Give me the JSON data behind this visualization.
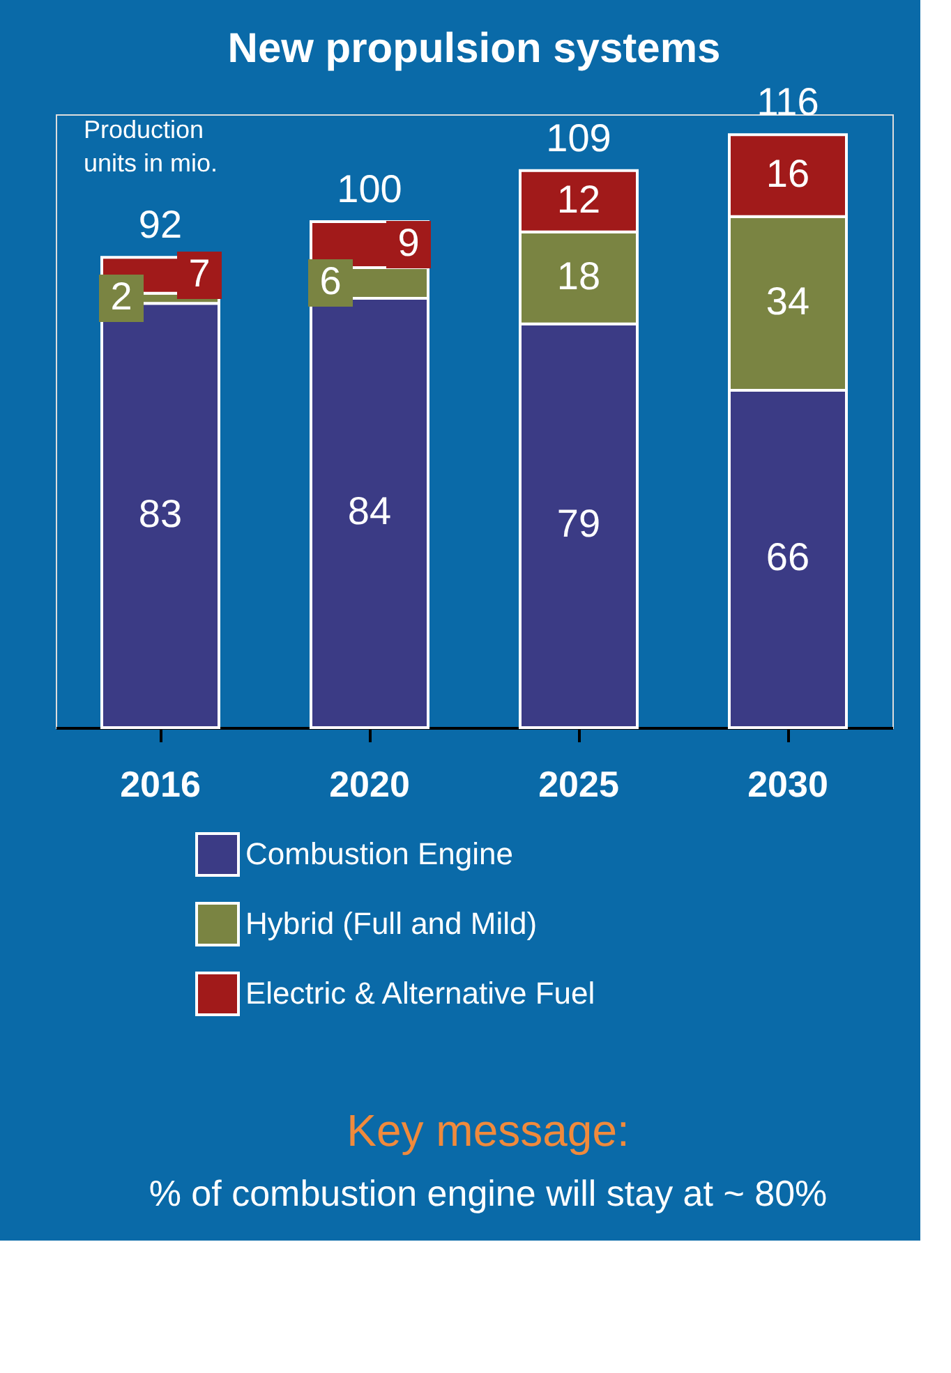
{
  "chart_data": {
    "type": "bar",
    "stacked": true,
    "title": "New propulsion systems",
    "categories": [
      "2016",
      "2020",
      "2025",
      "2030"
    ],
    "series": [
      {
        "name": "Combustion Engine",
        "color": "#3b3b85",
        "values": [
          83,
          84,
          79,
          66
        ]
      },
      {
        "name": "Hybrid (Full and Mild)",
        "color": "#7a8442",
        "values": [
          2,
          6,
          18,
          34
        ]
      },
      {
        "name": "Electric & Alternative Fuel",
        "color": "#a11a1a",
        "values": [
          7,
          9,
          12,
          16
        ]
      }
    ],
    "totals": [
      "92",
      "100",
      "109",
      "116"
    ],
    "data_labels": true,
    "legend": "bottom",
    "grid": false,
    "annotations": [
      "Production units in mio.",
      "Key message:",
      "% of combustion engine will stay at ~ 80%"
    ]
  }
}
